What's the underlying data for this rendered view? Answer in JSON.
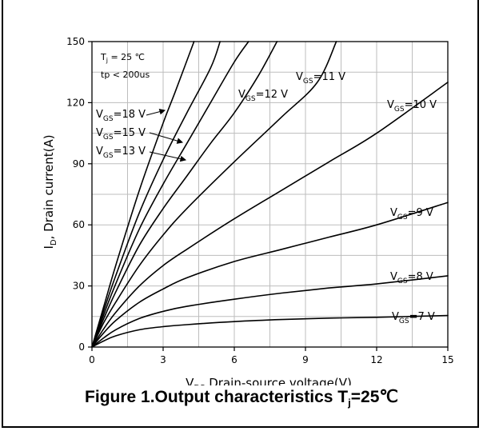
{
  "figure": {
    "caption_main": "Figure 1.Output characteristics T",
    "caption_sub": "j",
    "caption_tail": "=25℃"
  },
  "chart_data": {
    "type": "line",
    "xlabel": {
      "main": "V",
      "sub": "DS",
      "rest": ",Drain-source voltage(V)"
    },
    "ylabel": {
      "main": "I",
      "sub": "D",
      "rest": ", Drain current(A)"
    },
    "xlim": [
      0,
      15
    ],
    "ylim": [
      0,
      150
    ],
    "xticks": [
      0,
      3,
      6,
      9,
      12,
      15
    ],
    "yticks": [
      0,
      30,
      60,
      90,
      120,
      150
    ],
    "grid": true,
    "conditions": {
      "tj": {
        "main": "T",
        "sub": "j",
        "rest": " = 25 ℃"
      },
      "tp": "tp < 200us"
    },
    "series": [
      {
        "name": "VGS=7 V",
        "label": {
          "main": "V",
          "sub": "GS",
          "rest": "=7 V"
        },
        "x": [
          0,
          0.5,
          1,
          2,
          3,
          4,
          6,
          8,
          10,
          12,
          15
        ],
        "y": [
          0,
          3,
          5.5,
          8.5,
          10,
          11,
          12.5,
          13.5,
          14.2,
          14.6,
          15.5
        ]
      },
      {
        "name": "VGS=8 V",
        "label": {
          "main": "V",
          "sub": "GS",
          "rest": "=8 V"
        },
        "x": [
          0,
          0.5,
          1,
          2,
          3,
          4,
          6,
          8,
          10,
          12,
          15
        ],
        "y": [
          0,
          4.5,
          8.5,
          14,
          17.5,
          20,
          23.5,
          26.5,
          29,
          31,
          35
        ]
      },
      {
        "name": "VGS=9 V",
        "label": {
          "main": "V",
          "sub": "GS",
          "rest": "=9 V"
        },
        "x": [
          0,
          0.5,
          1,
          2,
          3,
          4,
          6,
          8,
          10,
          12,
          15
        ],
        "y": [
          0,
          7,
          13,
          22,
          28.5,
          34,
          42,
          48,
          54,
          60,
          71
        ]
      },
      {
        "name": "VGS=10 V",
        "label": {
          "main": "V",
          "sub": "GS",
          "rest": "=10 V"
        },
        "x": [
          0,
          0.5,
          1,
          2,
          3,
          4,
          6,
          8,
          10,
          12,
          15
        ],
        "y": [
          0,
          9,
          17,
          30,
          40,
          48,
          63,
          77,
          91,
          105,
          130
        ]
      },
      {
        "name": "VGS=11 V",
        "label": {
          "main": "V",
          "sub": "GS",
          "rest": "=11 V"
        },
        "x": [
          0,
          0.5,
          1,
          2,
          3,
          4,
          6,
          8,
          9.5,
          10.3
        ],
        "y": [
          0,
          12,
          22,
          40,
          55,
          68,
          91,
          113,
          130,
          150
        ]
      },
      {
        "name": "VGS=12 V",
        "label": {
          "main": "V",
          "sub": "GS",
          "rest": "=12 V"
        },
        "x": [
          0,
          0.5,
          1,
          2,
          3,
          4,
          5,
          6,
          7,
          7.8
        ],
        "y": [
          0,
          14,
          27,
          50,
          68,
          84,
          100,
          115,
          133,
          150
        ]
      },
      {
        "name": "VGS=13 V",
        "label": {
          "main": "V",
          "sub": "GS",
          "rest": "=13 V"
        },
        "x": [
          0,
          0.5,
          1,
          2,
          3,
          4,
          5,
          6,
          6.6
        ],
        "y": [
          0,
          16,
          31,
          58,
          80,
          100,
          120,
          140,
          150
        ]
      },
      {
        "name": "VGS=15 V",
        "label": {
          "main": "V",
          "sub": "GS",
          "rest": "=15 V"
        },
        "x": [
          0,
          0.5,
          1,
          2,
          3,
          4,
          5,
          5.4
        ],
        "y": [
          0,
          18,
          35,
          66,
          92,
          115,
          137,
          150
        ]
      },
      {
        "name": "VGS=18 V",
        "label": {
          "main": "V",
          "sub": "GS",
          "rest": "=18 V"
        },
        "x": [
          0,
          0.5,
          1,
          2,
          3,
          3.5,
          4.3
        ],
        "y": [
          0,
          20,
          40,
          77,
          110,
          125,
          150
        ]
      }
    ]
  }
}
